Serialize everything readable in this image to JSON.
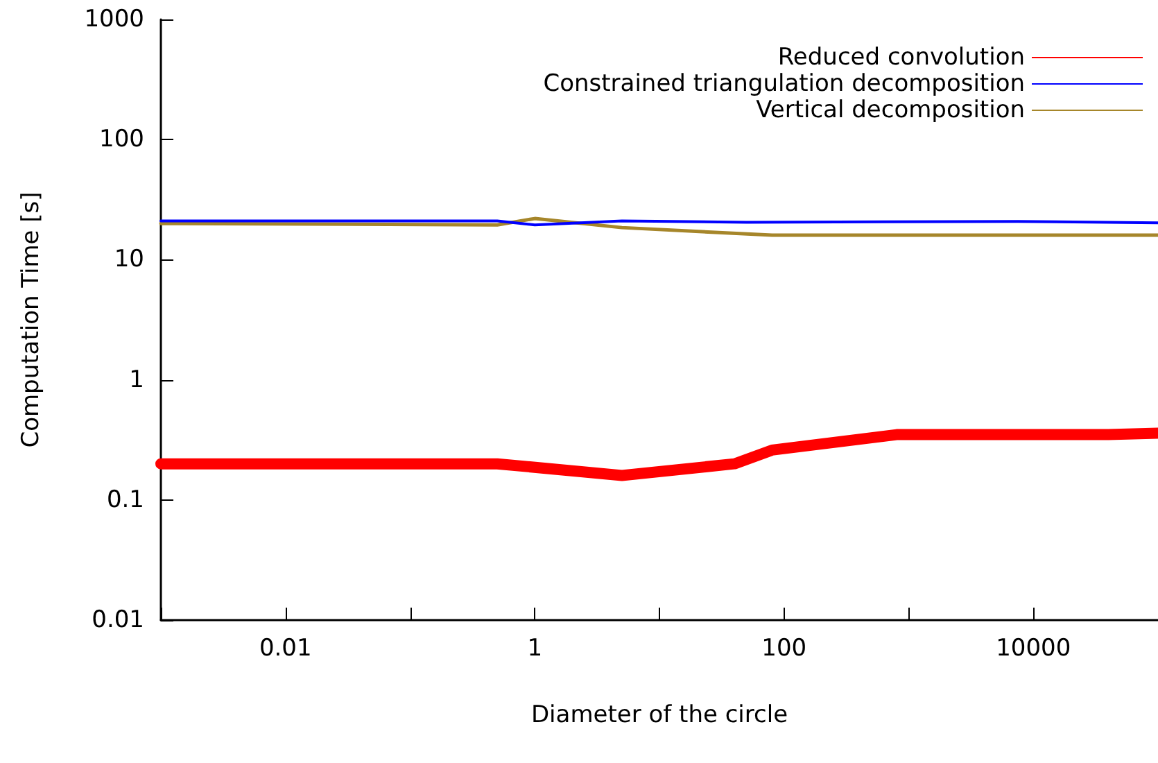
{
  "chart_data": {
    "type": "line",
    "xlabel": "Diameter of the circle",
    "ylabel": "Computation Time [s]",
    "log": "xy",
    "grid": false,
    "legend": "top right",
    "marker": "none",
    "line_style": "solid",
    "xlim": [
      0.001,
      100000
    ],
    "xticks": [
      {
        "value": 0.001,
        "label": null
      },
      {
        "value": 0.01,
        "label": "0.01"
      },
      {
        "value": 0.1,
        "label": null
      },
      {
        "value": 1,
        "label": "1"
      },
      {
        "value": 10,
        "label": null
      },
      {
        "value": 100,
        "label": "100"
      },
      {
        "value": 1000,
        "label": null
      },
      {
        "value": 10000,
        "label": "10000"
      }
    ],
    "ylim": [
      0.01,
      1000
    ],
    "yticks": [
      {
        "value": 0.01,
        "label": "0.01"
      },
      {
        "value": 0.1,
        "label": "0.1"
      },
      {
        "value": 1,
        "label": "1"
      },
      {
        "value": 10,
        "label": "10"
      },
      {
        "value": 100,
        "label": "100"
      },
      {
        "value": 1000,
        "label": "1000"
      }
    ],
    "series": [
      {
        "name": "Reduced convolution",
        "color": "#ff0000",
        "x": [
          0.001,
          0.1,
          0.5,
          5,
          40,
          80,
          800,
          7500,
          40000,
          100000
        ],
        "values": [
          0.2,
          0.2,
          0.2,
          0.16,
          0.2,
          0.26,
          0.35,
          0.35,
          0.35,
          0.36
        ]
      },
      {
        "name": "Constrained triangulation decomposition",
        "color": "#0000ff",
        "x": [
          0.001,
          0.5,
          1,
          5,
          50,
          7500,
          100000
        ],
        "values": [
          21,
          21,
          19.5,
          21,
          20.5,
          20.8,
          20.3
        ]
      },
      {
        "name": "Vertical decomposition",
        "color": "#a6862a",
        "x": [
          0.001,
          0.5,
          1,
          5,
          80,
          100000
        ],
        "values": [
          20,
          19.5,
          22,
          18.5,
          16,
          16
        ]
      }
    ]
  }
}
